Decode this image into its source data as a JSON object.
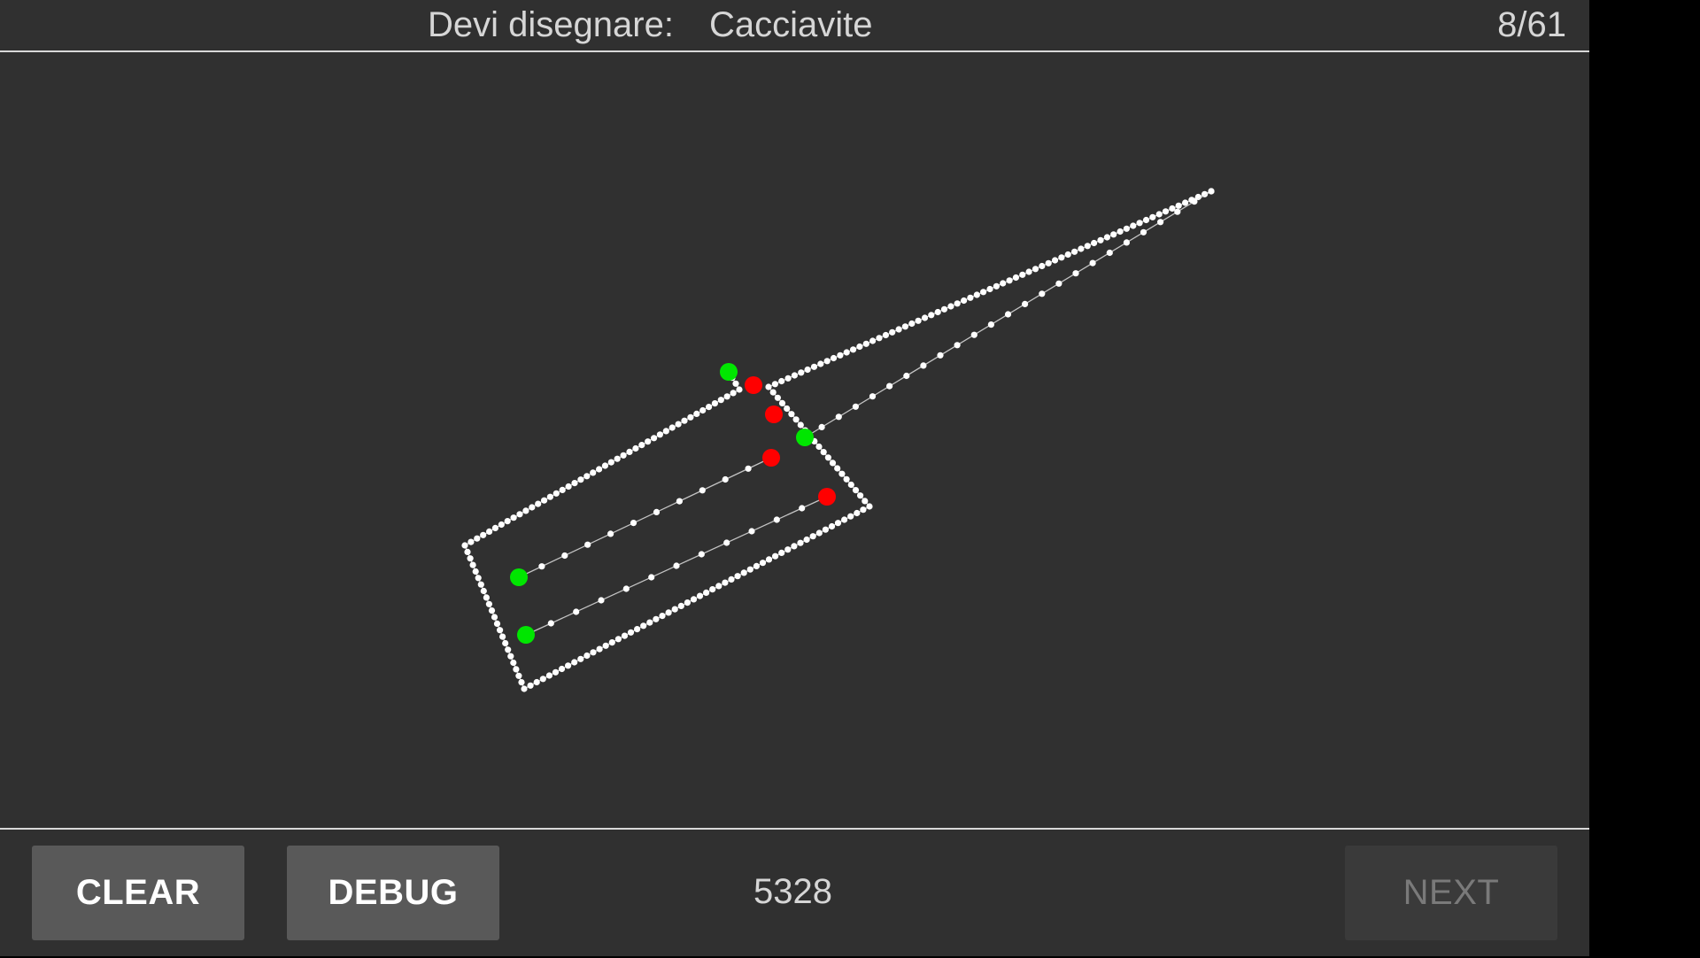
{
  "header": {
    "prompt_label": "Devi disegnare:",
    "prompt_word": "Cacciavite",
    "progress": "8/61"
  },
  "footer": {
    "clear_label": "CLEAR",
    "debug_label": "DEBUG",
    "score": "5328",
    "next_label": "NEXT",
    "next_enabled": false
  },
  "colors": {
    "background": "#303030",
    "divider": "#d8d8d8",
    "stroke_point": "#ffffff",
    "stroke_start": "#00e600",
    "stroke_end": "#ff0000",
    "button": "#595959",
    "button_disabled": "#3a3a3a"
  },
  "drawing_icon": "pen-strokes"
}
